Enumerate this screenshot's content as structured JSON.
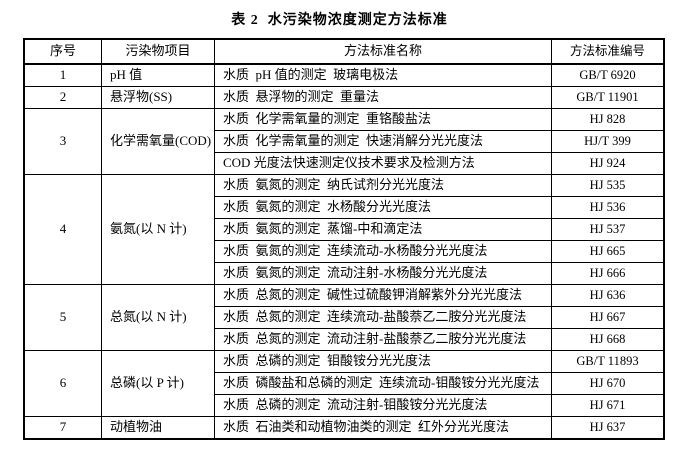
{
  "title": "表 2  水污染物浓度测定方法标准",
  "colors": {
    "border": "#000000",
    "text": "#000000",
    "background": "#ffffff"
  },
  "table": {
    "headers": [
      "序号",
      "污染物项目",
      "方法标准名称",
      "方法标准编号"
    ],
    "groups": [
      {
        "no": "1",
        "pollutant": "pH 值",
        "methods": [
          {
            "name": "水质  pH 值的测定  玻璃电极法",
            "code": "GB/T 6920"
          }
        ]
      },
      {
        "no": "2",
        "pollutant": "悬浮物(SS)",
        "methods": [
          {
            "name": "水质  悬浮物的测定  重量法",
            "code": "GB/T 11901"
          }
        ]
      },
      {
        "no": "3",
        "pollutant": "化学需氧量(COD)",
        "methods": [
          {
            "name": "水质  化学需氧量的测定  重铬酸盐法",
            "code": "HJ 828"
          },
          {
            "name": "水质  化学需氧量的测定  快速消解分光光度法",
            "code": "HJ/T 399"
          },
          {
            "name": "COD 光度法快速测定仪技术要求及检测方法",
            "code": "HJ 924"
          }
        ]
      },
      {
        "no": "4",
        "pollutant": "氨氮(以 N 计)",
        "methods": [
          {
            "name": "水质  氨氮的测定  纳氏试剂分光光度法",
            "code": "HJ 535"
          },
          {
            "name": "水质  氨氮的测定  水杨酸分光光度法",
            "code": "HJ 536"
          },
          {
            "name": "水质  氨氮的测定  蒸馏-中和滴定法",
            "code": "HJ 537"
          },
          {
            "name": "水质  氨氮的测定  连续流动-水杨酸分光光度法",
            "code": "HJ 665"
          },
          {
            "name": "水质  氨氮的测定  流动注射-水杨酸分光光度法",
            "code": "HJ 666"
          }
        ]
      },
      {
        "no": "5",
        "pollutant": "总氮(以 N 计)",
        "methods": [
          {
            "name": "水质  总氮的测定  碱性过硫酸钾消解紫外分光光度法",
            "code": "HJ 636"
          },
          {
            "name": "水质  总氮的测定  连续流动-盐酸萘乙二胺分光光度法",
            "code": "HJ 667"
          },
          {
            "name": "水质  总氮的测定  流动注射-盐酸萘乙二胺分光光度法",
            "code": "HJ 668"
          }
        ]
      },
      {
        "no": "6",
        "pollutant": "总磷(以 P 计)",
        "methods": [
          {
            "name": "水质  总磷的测定  钼酸铵分光光度法",
            "code": "GB/T 11893"
          },
          {
            "name": "水质  磷酸盐和总磷的测定  连续流动-钼酸铵分光光度法",
            "code": "HJ 670"
          },
          {
            "name": "水质  总磷的测定  流动注射-钼酸铵分光光度法",
            "code": "HJ 671"
          }
        ]
      },
      {
        "no": "7",
        "pollutant": "动植物油",
        "methods": [
          {
            "name": "水质  石油类和动植物油类的测定  红外分光光度法",
            "code": "HJ 637"
          }
        ]
      }
    ]
  }
}
